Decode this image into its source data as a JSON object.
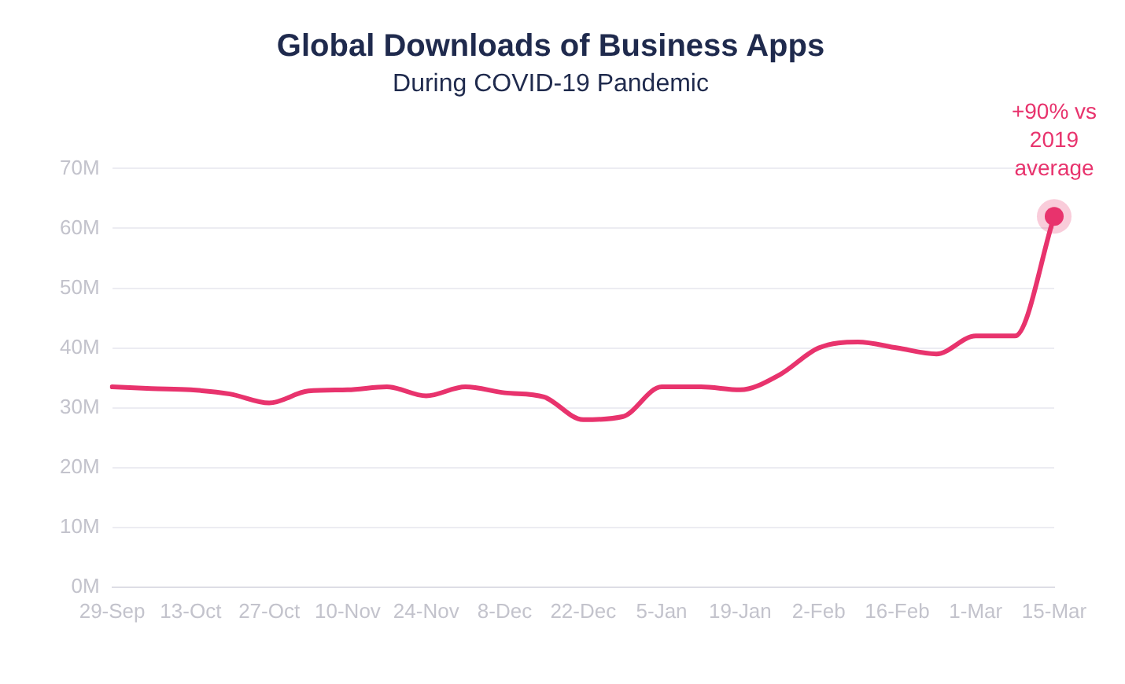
{
  "chart_data": {
    "type": "line",
    "title": "Global Downloads of Business Apps",
    "subtitle": "During COVID-19 Pandemic",
    "categories": [
      "29-Sep",
      null,
      "13-Oct",
      null,
      "27-Oct",
      null,
      "10-Nov",
      null,
      "24-Nov",
      null,
      "8-Dec",
      null,
      "22-Dec",
      null,
      "5-Jan",
      null,
      "19-Jan",
      null,
      "2-Feb",
      null,
      "16-Feb",
      null,
      "1-Mar",
      null,
      "15-Mar"
    ],
    "series": [
      {
        "color": "#e8336d",
        "values": [
          33.5,
          33.2,
          33,
          32.3,
          30.8,
          32.8,
          33,
          33.5,
          32,
          33.5,
          32.5,
          31.8,
          28,
          28.5,
          33.5,
          33.5,
          33,
          35.5,
          40,
          41,
          40,
          39,
          42,
          42,
          62
        ]
      }
    ],
    "ylim": [
      0,
      70
    ],
    "yticks": [
      {
        "value": 0,
        "label": "0M"
      },
      {
        "value": 10,
        "label": "10M"
      },
      {
        "value": 20,
        "label": "20M"
      },
      {
        "value": 30,
        "label": "30M"
      },
      {
        "value": 40,
        "label": "40M"
      },
      {
        "value": 50,
        "label": "50M"
      },
      {
        "value": 60,
        "label": "60M"
      },
      {
        "value": 70,
        "label": "70M"
      }
    ],
    "grid": "y",
    "marker": "none",
    "line_style": "solid",
    "annotations": [
      {
        "text": "+90% vs 2019 average",
        "x": "15-Mar",
        "y": 62
      }
    ]
  }
}
